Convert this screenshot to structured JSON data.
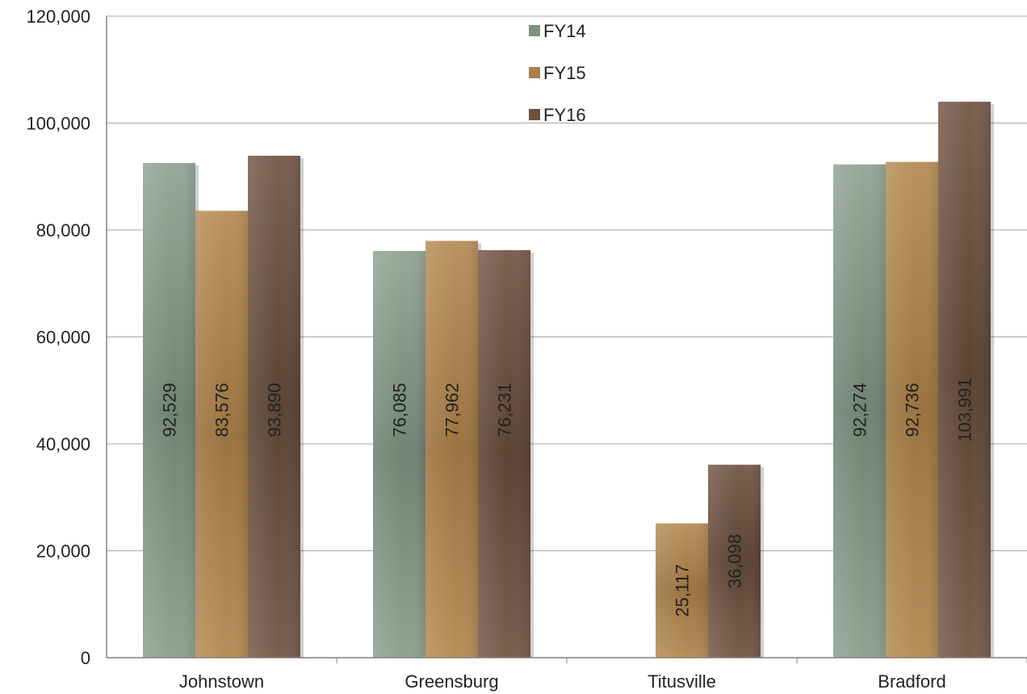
{
  "chart_data": {
    "type": "bar",
    "categories": [
      "Johnstown",
      "Greensburg",
      "Titusville",
      "Bradford"
    ],
    "series": [
      {
        "name": "FY14",
        "color": "#7f9384",
        "values": [
          92529,
          76085,
          null,
          92274
        ],
        "labels": [
          "92,529",
          "76,085",
          "",
          "92,274"
        ]
      },
      {
        "name": "FY15",
        "color": "#a8804c",
        "values": [
          83576,
          77962,
          25117,
          92736
        ],
        "labels": [
          "83,576",
          "77,962",
          "25,117",
          "92,736"
        ]
      },
      {
        "name": "FY16",
        "color": "#6b5241",
        "values": [
          93890,
          76231,
          36098,
          103991
        ],
        "labels": [
          "93,890",
          "76,231",
          "36,098",
          "103,991"
        ]
      }
    ],
    "yticks": [
      0,
      20000,
      40000,
      60000,
      80000,
      100000,
      120000
    ],
    "ytick_labels": [
      "0",
      "20,000",
      "40,000",
      "60,000",
      "80,000",
      "100,000",
      "120,000"
    ],
    "ylim": [
      0,
      120000
    ],
    "grid": true,
    "legend_position": "top-center",
    "title": "",
    "xlabel": "",
    "ylabel": ""
  }
}
